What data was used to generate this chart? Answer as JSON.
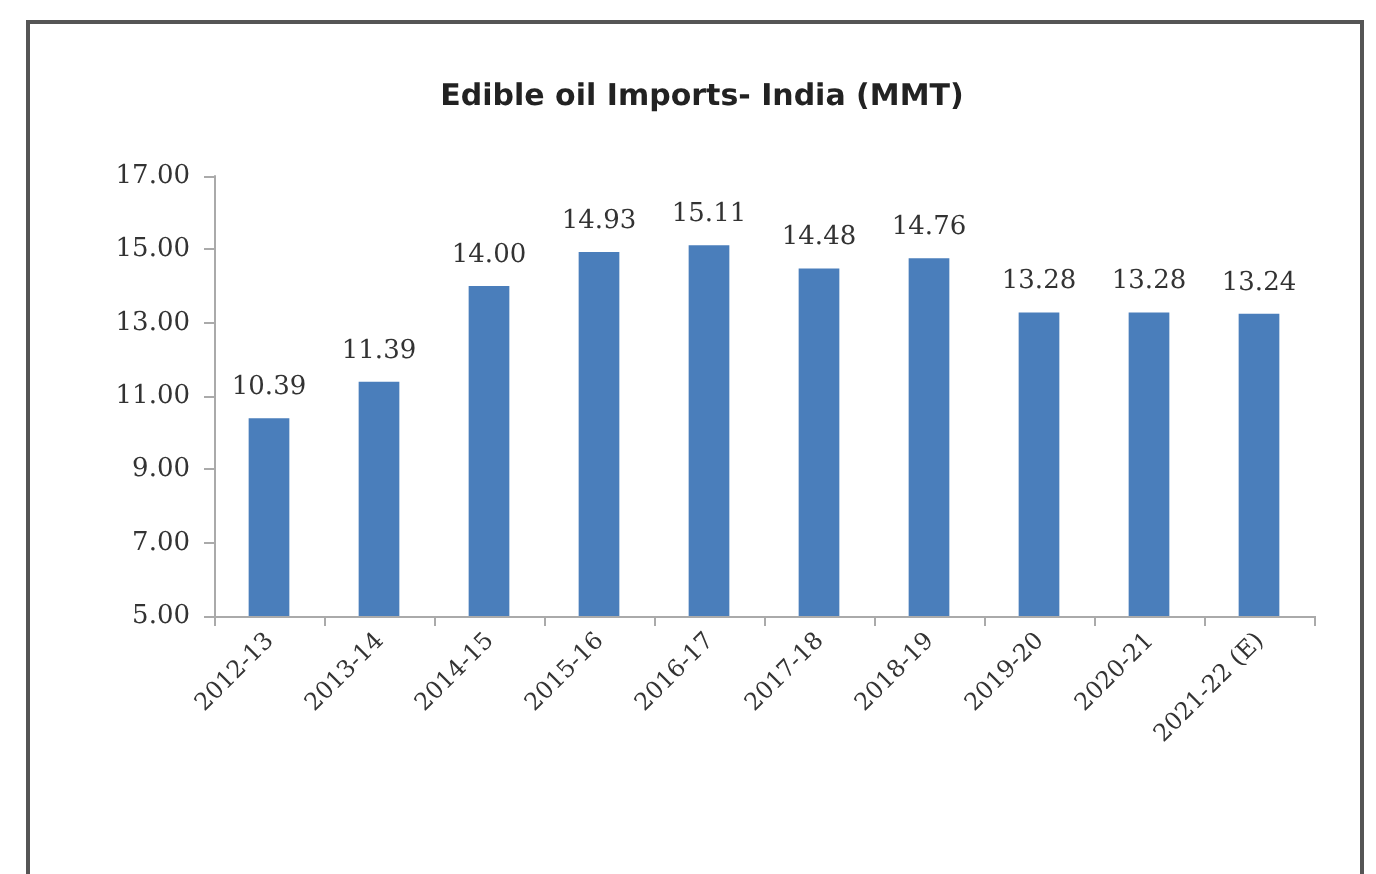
{
  "chart_data": {
    "type": "bar",
    "title": "Edible oil Imports- India (MMT)",
    "categories": [
      "2012-13",
      "2013-14",
      "2014-15",
      "2015-16",
      "2016-17",
      "2017-18",
      "2018-19",
      "2019-20",
      "2020-21",
      "2021-22 (E)"
    ],
    "values": [
      10.39,
      11.39,
      14.0,
      14.93,
      15.11,
      14.48,
      14.76,
      13.28,
      13.28,
      13.24
    ],
    "value_labels": [
      "10.39",
      "11.39",
      "14.00",
      "14.93",
      "15.11",
      "14.48",
      "14.76",
      "13.28",
      "13.28",
      "13.24"
    ],
    "color": "#4a7ebb",
    "ylim": [
      5,
      17
    ],
    "yticks": [
      {
        "value": 5,
        "label": "5.00"
      },
      {
        "value": 7,
        "label": "7.00"
      },
      {
        "value": 9,
        "label": "9.00"
      },
      {
        "value": 11,
        "label": "11.00"
      },
      {
        "value": 13,
        "label": "13.00"
      },
      {
        "value": 15,
        "label": "15.00"
      },
      {
        "value": 17,
        "label": "17.00"
      }
    ],
    "grid": false
  }
}
